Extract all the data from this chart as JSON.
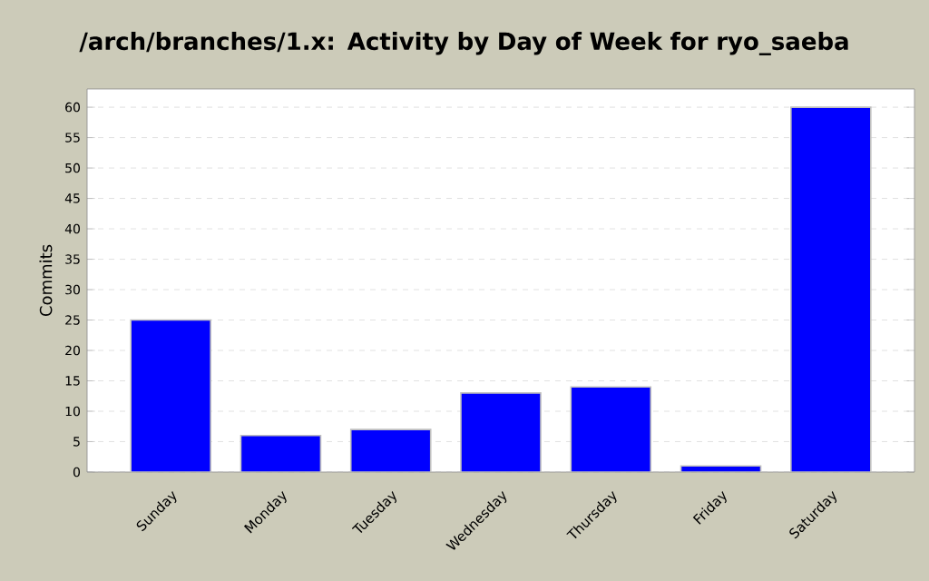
{
  "chart_data": {
    "type": "bar",
    "title": "/arch/branches/1.x: Activity by Day of Week for ryo_saeba",
    "ylabel": "Commits",
    "categories": [
      "Sunday",
      "Monday",
      "Tuesday",
      "Wednesday",
      "Thursday",
      "Friday",
      "Saturday"
    ],
    "values": [
      25,
      6,
      7,
      13,
      14,
      1,
      60
    ],
    "color": "#0000ff",
    "ylim": [
      0,
      63
    ],
    "yticks": [
      0,
      5,
      10,
      15,
      20,
      25,
      30,
      35,
      40,
      45,
      50,
      55,
      60
    ],
    "grid": "y"
  }
}
